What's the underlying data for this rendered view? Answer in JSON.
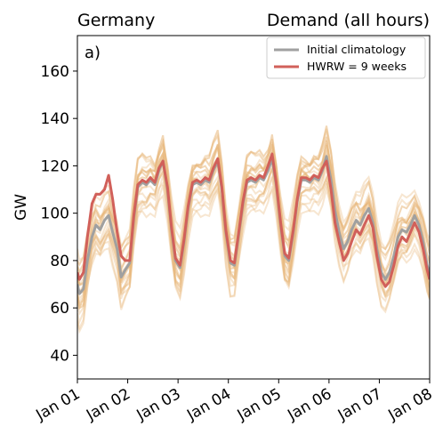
{
  "chart_data": {
    "type": "line",
    "title_left": "Germany",
    "title_right": "Demand (all hours)",
    "panel_label": "a)",
    "xlabel": "",
    "ylabel": "GW",
    "x_unit": "days since Jan 01",
    "xlim": [
      0,
      7
    ],
    "ylim": [
      30,
      175
    ],
    "yticks": [
      40,
      60,
      80,
      100,
      120,
      140,
      160
    ],
    "xticks": [
      {
        "day": 0,
        "label": "Jan 01"
      },
      {
        "day": 1,
        "label": "Jan 02"
      },
      {
        "day": 2,
        "label": "Jan 03"
      },
      {
        "day": 3,
        "label": "Jan 04"
      },
      {
        "day": 4,
        "label": "Jan 05"
      },
      {
        "day": 5,
        "label": "Jan 06"
      },
      {
        "day": 6,
        "label": "Jan 07"
      },
      {
        "day": 7,
        "label": "Jan 08"
      }
    ],
    "grid": false,
    "legend_position": "top-right",
    "series": [
      {
        "name": "Initial climatology",
        "color": "#a0a0a0",
        "x": [
          0,
          0.04,
          0.12,
          0.2,
          0.29,
          0.37,
          0.45,
          0.54,
          0.62,
          0.7,
          0.79,
          0.87,
          0.95,
          1.04,
          1.12,
          1.2,
          1.29,
          1.37,
          1.45,
          1.54,
          1.62,
          1.7,
          1.79,
          1.87,
          1.95,
          2.04,
          2.12,
          2.2,
          2.29,
          2.37,
          2.45,
          2.54,
          2.62,
          2.7,
          2.79,
          2.87,
          2.95,
          3.04,
          3.12,
          3.2,
          3.29,
          3.37,
          3.45,
          3.54,
          3.62,
          3.7,
          3.79,
          3.87,
          3.95,
          4.04,
          4.12,
          4.2,
          4.29,
          4.37,
          4.45,
          4.54,
          4.62,
          4.7,
          4.79,
          4.87,
          4.95,
          5.04,
          5.12,
          5.2,
          5.29,
          5.37,
          5.45,
          5.54,
          5.62,
          5.7,
          5.79,
          5.87,
          5.95,
          6.04,
          6.12,
          6.2,
          6.29,
          6.37,
          6.45,
          6.54,
          6.62,
          6.7,
          6.79,
          6.87,
          6.95,
          7.0
        ],
        "values": [
          70,
          66,
          68,
          80,
          90,
          95,
          93,
          97,
          99,
          92,
          85,
          73,
          76,
          79,
          98,
          111,
          113,
          112,
          114,
          112,
          118,
          122,
          110,
          93,
          80,
          77,
          88,
          102,
          112,
          113,
          112,
          114,
          113,
          118,
          122,
          110,
          92,
          79,
          78,
          90,
          104,
          113,
          114,
          113,
          115,
          114,
          118,
          123,
          112,
          95,
          82,
          80,
          92,
          105,
          114,
          114,
          113,
          115,
          114,
          118,
          124,
          114,
          101,
          92,
          85,
          88,
          93,
          97,
          95,
          99,
          102,
          96,
          85,
          75,
          72,
          75,
          82,
          90,
          93,
          92,
          95,
          99,
          95,
          88,
          78,
          74
        ]
      },
      {
        "name": "HWRW = 9 weeks",
        "color": "#d1605a",
        "x": [
          0,
          0.04,
          0.12,
          0.2,
          0.29,
          0.37,
          0.45,
          0.54,
          0.62,
          0.7,
          0.79,
          0.87,
          0.95,
          1.04,
          1.12,
          1.2,
          1.29,
          1.37,
          1.45,
          1.54,
          1.62,
          1.7,
          1.79,
          1.87,
          1.95,
          2.04,
          2.12,
          2.2,
          2.29,
          2.37,
          2.45,
          2.54,
          2.62,
          2.7,
          2.79,
          2.87,
          2.95,
          3.04,
          3.12,
          3.2,
          3.29,
          3.37,
          3.45,
          3.54,
          3.62,
          3.7,
          3.79,
          3.87,
          3.95,
          4.04,
          4.12,
          4.2,
          4.29,
          4.37,
          4.45,
          4.54,
          4.62,
          4.7,
          4.79,
          4.87,
          4.95,
          5.04,
          5.12,
          5.2,
          5.29,
          5.37,
          5.45,
          5.54,
          5.62,
          5.7,
          5.79,
          5.87,
          5.95,
          6.04,
          6.12,
          6.2,
          6.29,
          6.37,
          6.45,
          6.54,
          6.62,
          6.7,
          6.79,
          6.87,
          6.95,
          7.0
        ],
        "values": [
          75,
          72,
          75,
          90,
          104,
          108,
          108,
          110,
          116,
          106,
          92,
          82,
          80,
          80,
          99,
          112,
          114,
          113,
          115,
          113,
          119,
          122,
          111,
          94,
          81,
          78,
          89,
          103,
          113,
          114,
          113,
          115,
          114,
          119,
          123,
          111,
          93,
          80,
          79,
          91,
          105,
          114,
          115,
          114,
          116,
          115,
          120,
          125,
          113,
          96,
          83,
          81,
          93,
          106,
          115,
          115,
          114,
          116,
          115,
          119,
          122,
          110,
          96,
          88,
          80,
          83,
          88,
          93,
          91,
          95,
          99,
          94,
          82,
          72,
          69,
          71,
          78,
          86,
          90,
          88,
          92,
          96,
          92,
          85,
          76,
          72
        ]
      }
    ]
  },
  "legend": {
    "item1_label": "Initial climatology",
    "item2_label": "HWRW = 9 weeks"
  }
}
